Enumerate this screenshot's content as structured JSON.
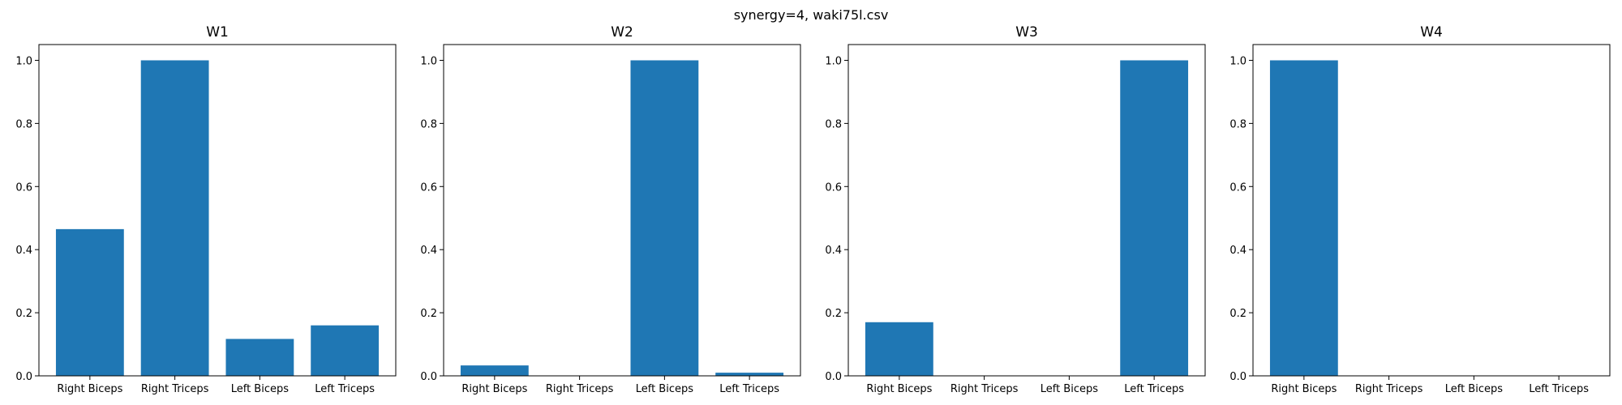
{
  "suptitle": "synergy=4, waki75l.csv",
  "bar_color": "#1f77b4",
  "chart_data": [
    {
      "type": "bar",
      "title": "W1",
      "categories": [
        "Right Biceps",
        "Right Triceps",
        "Left Biceps",
        "Left Triceps"
      ],
      "values": [
        0.465,
        1.0,
        0.117,
        0.16
      ],
      "ylim": [
        0,
        1.05
      ],
      "yticks": [
        "0.0",
        "0.2",
        "0.4",
        "0.6",
        "0.8",
        "1.0"
      ],
      "grid": false
    },
    {
      "type": "bar",
      "title": "W2",
      "categories": [
        "Right Biceps",
        "Right Triceps",
        "Left Biceps",
        "Left Triceps"
      ],
      "values": [
        0.033,
        0.0,
        1.0,
        0.01
      ],
      "ylim": [
        0,
        1.05
      ],
      "yticks": [
        "0.0",
        "0.2",
        "0.4",
        "0.6",
        "0.8",
        "1.0"
      ],
      "grid": false
    },
    {
      "type": "bar",
      "title": "W3",
      "categories": [
        "Right Biceps",
        "Right Triceps",
        "Left Biceps",
        "Left Triceps"
      ],
      "values": [
        0.17,
        0.0,
        0.0,
        1.0
      ],
      "ylim": [
        0,
        1.05
      ],
      "yticks": [
        "0.0",
        "0.2",
        "0.4",
        "0.6",
        "0.8",
        "1.0"
      ],
      "grid": false
    },
    {
      "type": "bar",
      "title": "W4",
      "categories": [
        "Right Biceps",
        "Right Triceps",
        "Left Biceps",
        "Left Triceps"
      ],
      "values": [
        1.0,
        0.0,
        0.0,
        0.0
      ],
      "ylim": [
        0,
        1.05
      ],
      "yticks": [
        "0.0",
        "0.2",
        "0.4",
        "0.6",
        "0.8",
        "1.0"
      ],
      "grid": false
    }
  ]
}
